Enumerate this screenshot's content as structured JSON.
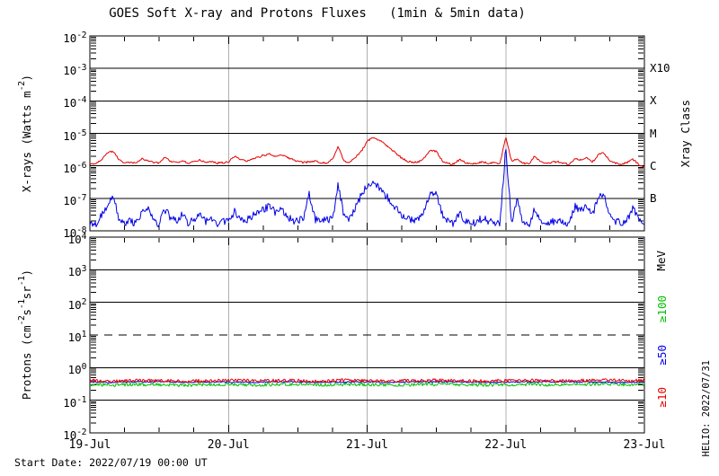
{
  "title": "GOES Soft X-ray and Protons Fluxes   (1min & 5min data)",
  "footer": {
    "start_date": "Start Date: 2022/07/19 00:00 UT"
  },
  "watermark": "HELIO: 2022/07/31",
  "colors": {
    "xray_long": "#e60000",
    "xray_short": "#0000e6",
    "protons_ge10": "#e60000",
    "protons_ge50": "#0000e6",
    "protons_ge100": "#00c200",
    "day_gridline": "#b0b0b0",
    "axis": "#000000"
  },
  "chart_data": [
    {
      "type": "line",
      "name": "xray-flux-panel",
      "ylabel": "X-rays (Watts m^-2)",
      "y_log10_range": [
        -8,
        -2
      ],
      "y_tick_exponents": [
        -2,
        -3,
        -4,
        -5,
        -6,
        -7,
        -8
      ],
      "right_axis_title": "Xray Class",
      "right_labels": [
        {
          "text": "X10",
          "log10": -3,
          "color": "#000000"
        },
        {
          "text": "X",
          "log10": -4,
          "color": "#000000"
        },
        {
          "text": "M",
          "log10": -5,
          "color": "#000000"
        },
        {
          "text": "C",
          "log10": -6,
          "color": "#000000"
        },
        {
          "text": "B",
          "log10": -7,
          "color": "#000000"
        }
      ],
      "x_range_hours": [
        0,
        96
      ],
      "x_tick_hours": [
        0,
        24,
        48,
        72,
        96
      ],
      "x_tick_labels": [
        "19-Jul",
        "20-Jul",
        "21-Jul",
        "22-Jul",
        "23-Jul"
      ],
      "x_minor_tick_hours": 6,
      "day_gridline_hours": [
        24,
        48,
        72
      ],
      "grid": true,
      "series": [
        {
          "name": "xray-long-flux",
          "color": "#e60000",
          "x_start_hour": 0,
          "x_step_hours": 1,
          "jitter_log10": 0.03,
          "values_log10": [
            -5.92,
            -5.95,
            -5.8,
            -5.6,
            -5.55,
            -5.8,
            -5.9,
            -5.88,
            -5.92,
            -5.78,
            -5.85,
            -5.9,
            -5.92,
            -5.74,
            -5.86,
            -5.9,
            -5.84,
            -5.92,
            -5.88,
            -5.8,
            -5.9,
            -5.86,
            -5.92,
            -5.9,
            -5.88,
            -5.7,
            -5.8,
            -5.86,
            -5.8,
            -5.74,
            -5.68,
            -5.64,
            -5.7,
            -5.67,
            -5.72,
            -5.8,
            -5.86,
            -5.9,
            -5.87,
            -5.85,
            -5.9,
            -5.92,
            -5.8,
            -5.4,
            -5.86,
            -5.88,
            -5.72,
            -5.55,
            -5.25,
            -5.12,
            -5.2,
            -5.32,
            -5.46,
            -5.62,
            -5.76,
            -5.86,
            -5.9,
            -5.86,
            -5.74,
            -5.52,
            -5.56,
            -5.85,
            -5.92,
            -5.95,
            -5.8,
            -5.9,
            -5.95,
            -5.92,
            -5.88,
            -5.92,
            -5.9,
            -5.94,
            -5.1,
            -5.85,
            -5.78,
            -5.92,
            -5.95,
            -5.7,
            -5.88,
            -5.94,
            -5.9,
            -5.86,
            -5.92,
            -5.95,
            -5.76,
            -5.82,
            -5.74,
            -5.88,
            -5.66,
            -5.6,
            -5.84,
            -5.92,
            -5.95,
            -5.9,
            -5.8,
            -5.95,
            -6.05
          ]
        },
        {
          "name": "xray-short-flux",
          "color": "#0000e6",
          "x_start_hour": 0,
          "x_step_hours": 1,
          "jitter_log10": 0.12,
          "values_log10": [
            -7.72,
            -7.8,
            -7.55,
            -7.3,
            -6.92,
            -7.6,
            -7.75,
            -7.68,
            -7.78,
            -7.45,
            -7.3,
            -7.7,
            -7.78,
            -7.35,
            -7.6,
            -7.72,
            -7.5,
            -7.75,
            -7.68,
            -7.45,
            -7.72,
            -7.58,
            -7.76,
            -7.7,
            -7.7,
            -7.4,
            -7.62,
            -7.72,
            -7.55,
            -7.45,
            -7.32,
            -7.26,
            -7.42,
            -7.36,
            -7.52,
            -7.66,
            -7.72,
            -7.58,
            -6.85,
            -7.65,
            -7.72,
            -7.6,
            -7.68,
            -6.55,
            -7.55,
            -7.65,
            -7.3,
            -6.88,
            -6.6,
            -6.52,
            -6.66,
            -6.86,
            -7.1,
            -7.3,
            -7.5,
            -7.62,
            -7.7,
            -7.64,
            -7.32,
            -6.76,
            -6.86,
            -7.5,
            -7.72,
            -7.78,
            -7.45,
            -7.7,
            -7.78,
            -7.72,
            -7.6,
            -7.7,
            -7.74,
            -7.78,
            -5.45,
            -7.7,
            -7.0,
            -7.75,
            -7.8,
            -7.3,
            -7.7,
            -7.78,
            -7.72,
            -7.64,
            -7.7,
            -7.78,
            -7.25,
            -7.36,
            -7.2,
            -7.55,
            -6.95,
            -6.92,
            -7.5,
            -7.7,
            -7.78,
            -7.64,
            -7.32,
            -7.6,
            -7.7
          ]
        }
      ]
    },
    {
      "type": "line",
      "name": "proton-flux-panel",
      "ylabel": "Protons (cm^-2s^-1sr^-1)",
      "y_log10_range": [
        -2,
        4
      ],
      "y_tick_exponents": [
        4,
        3,
        2,
        1,
        0,
        -1,
        -2
      ],
      "right_axis_title": "MeV",
      "right_labels": [
        {
          "text": "≥100",
          "log10": 1.8,
          "color": "#00c200"
        },
        {
          "text": "≥50",
          "log10": 0.4,
          "color": "#0000e6"
        },
        {
          "text": "≥10",
          "log10": -0.9,
          "color": "#e60000"
        }
      ],
      "x_range_hours": [
        0,
        96
      ],
      "x_tick_hours": [
        0,
        24,
        48,
        72,
        96
      ],
      "x_tick_labels": [
        "19-Jul",
        "20-Jul",
        "21-Jul",
        "22-Jul",
        "23-Jul"
      ],
      "x_minor_tick_hours": 6,
      "day_gridline_hours": [
        24,
        48,
        72
      ],
      "grid": true,
      "threshold": {
        "log10": 1,
        "style": "dashed"
      },
      "series": [
        {
          "name": "protons-ge10MeV",
          "color": "#e60000",
          "x_start_hour": 0,
          "x_step_hours": 4,
          "jitter_log10": 0.05,
          "values_log10": [
            -0.4,
            -0.41,
            -0.39,
            -0.4,
            -0.42,
            -0.4,
            -0.39,
            -0.41,
            -0.4,
            -0.4,
            -0.41,
            -0.39,
            -0.4,
            -0.42,
            -0.4,
            -0.39,
            -0.4,
            -0.41,
            -0.4,
            -0.39,
            -0.41,
            -0.4,
            -0.38,
            -0.4,
            -0.4
          ]
        },
        {
          "name": "protons-ge50MeV",
          "color": "#0000e6",
          "x_start_hour": 0,
          "x_step_hours": 4,
          "jitter_log10": 0.02,
          "values_log10": [
            -0.44,
            -0.45,
            -0.44,
            -0.43,
            -0.45,
            -0.44,
            -0.44,
            -0.45,
            -0.43,
            -0.44,
            -0.45,
            -0.44,
            -0.44,
            -0.45,
            -0.44,
            -0.43,
            -0.44,
            -0.45,
            -0.44,
            -0.44,
            -0.43,
            -0.44,
            -0.44,
            -0.45,
            -0.44
          ]
        },
        {
          "name": "protons-ge100MeV",
          "color": "#00c200",
          "x_start_hour": 0,
          "x_step_hours": 4,
          "jitter_log10": 0.05,
          "values_log10": [
            -0.52,
            -0.53,
            -0.51,
            -0.52,
            -0.54,
            -0.52,
            -0.51,
            -0.53,
            -0.52,
            -0.52,
            -0.53,
            -0.51,
            -0.52,
            -0.53,
            -0.52,
            -0.51,
            -0.52,
            -0.53,
            -0.52,
            -0.51,
            -0.53,
            -0.52,
            -0.5,
            -0.52,
            -0.52
          ]
        }
      ]
    }
  ]
}
